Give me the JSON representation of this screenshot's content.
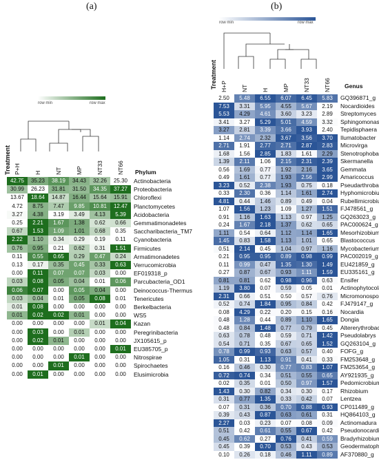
{
  "chart_data": [
    {
      "type": "heatmap",
      "panel": "(a)",
      "legend": {
        "min_label": "row min",
        "max_label": "row max",
        "low_color": "#ffffff",
        "high_color": "#1e6e1e"
      },
      "treatment_label": "Treatment",
      "row_header": "Phylum",
      "columns": [
        "P+H",
        "H",
        "NT",
        "MP",
        "NT33",
        "NT66"
      ],
      "rows": [
        {
          "name": "Actinobacteria",
          "values": [
            42.75,
            35.23,
            38.19,
            34.43,
            32.26,
            25.3
          ]
        },
        {
          "name": "Proteobacteria",
          "values": [
            30.99,
            26.23,
            31.81,
            31.5,
            34.35,
            37.27
          ]
        },
        {
          "name": "Chloroflexi",
          "values": [
            13.67,
            18.64,
            14.87,
            16.44,
            15.64,
            15.91
          ]
        },
        {
          "name": "Planctomycetes",
          "values": [
            4.72,
            8.75,
            7.47,
            9.85,
            10.81,
            12.47
          ]
        },
        {
          "name": "Acidobacteria",
          "values": [
            3.27,
            4.38,
            3.19,
            3.49,
            4.13,
            5.39
          ]
        },
        {
          "name": "Gemmatimonadetes",
          "values": [
            0.25,
            2.21,
            1.67,
            1.38,
            0.62,
            0.66
          ]
        },
        {
          "name": "Saccharibacteria_TM7",
          "values": [
            0.67,
            1.53,
            1.09,
            1.01,
            0.68,
            0.35
          ]
        },
        {
          "name": "Cyanobacteria",
          "values": [
            2.22,
            1.1,
            0.34,
            0.29,
            0.19,
            0.11
          ]
        },
        {
          "name": "Firmicutes",
          "values": [
            0.76,
            0.95,
            0.21,
            0.62,
            0.31,
            1.51
          ]
        },
        {
          "name": "Armatimonadetes",
          "values": [
            0.11,
            0.55,
            0.65,
            0.29,
            0.47,
            0.24
          ]
        },
        {
          "name": "Verrucomicrobia",
          "values": [
            0.13,
            0.17,
            0.35,
            0.45,
            0.33,
            0.63
          ]
        },
        {
          "name": "EF019318_p",
          "values": [
            0.0,
            0.11,
            0.07,
            0.07,
            0.03,
            0.0
          ]
        },
        {
          "name": "Parcubacteria_OD1",
          "values": [
            0.03,
            0.08,
            0.05,
            0.04,
            0.01,
            0.06
          ]
        },
        {
          "name": "Deinococcus-Thermus",
          "values": [
            0.06,
            0.07,
            0.0,
            0.05,
            0.04,
            0.0
          ]
        },
        {
          "name": "Tenericutes",
          "values": [
            0.03,
            0.04,
            0.01,
            0.05,
            0.08,
            0.01
          ]
        },
        {
          "name": "Berkelbacteria",
          "values": [
            0.01,
            0.08,
            0.0,
            0.0,
            0.0,
            0.0
          ]
        },
        {
          "name": "WS5",
          "values": [
            0.01,
            0.02,
            0.02,
            0.01,
            0.0,
            0.0
          ]
        },
        {
          "name": "Kazan",
          "values": [
            0.0,
            0.0,
            0.0,
            0.0,
            0.01,
            0.04
          ]
        },
        {
          "name": "Peregrinibacteria",
          "values": [
            0.0,
            0.03,
            0.0,
            0.01,
            0.0,
            0.0
          ]
        },
        {
          "name": "JX105615_p",
          "values": [
            0.0,
            0.02,
            0.01,
            0.0,
            0.0,
            0.0
          ]
        },
        {
          "name": "EU385705_p",
          "values": [
            0.0,
            0.0,
            0.0,
            0.0,
            0.0,
            0.01
          ]
        },
        {
          "name": "Nitrospirae",
          "values": [
            0.0,
            0.0,
            0.0,
            0.01,
            0.0,
            0.0
          ]
        },
        {
          "name": "Spirochaetes",
          "values": [
            0.0,
            0.0,
            0.01,
            0.0,
            0.0,
            0.0
          ]
        },
        {
          "name": "Elusimicrobia",
          "values": [
            0.0,
            0.01,
            0.0,
            0.0,
            0.0,
            0.0
          ]
        }
      ]
    },
    {
      "type": "heatmap",
      "panel": "(b)",
      "legend": {
        "min_label": "row min",
        "max_label": "row max",
        "low_color": "#ffffff",
        "high_color": "#2b5597"
      },
      "treatment_label": "Treatment",
      "row_header": "Genus",
      "columns": [
        "H+P",
        "NT",
        "H",
        "MP",
        "NT33",
        "NT66"
      ],
      "rows": [
        {
          "name": "GQ396871_g",
          "values": [
            2.5,
            5.48,
            6.55,
            6.07,
            6.45,
            5.83
          ]
        },
        {
          "name": "Nocardioides",
          "values": [
            7.53,
            3.31,
            5.95,
            4.55,
            5.67,
            2.19
          ]
        },
        {
          "name": "Streptomyces",
          "values": [
            5.53,
            4.29,
            4.61,
            3.6,
            3.23,
            2.89
          ]
        },
        {
          "name": "Sphingomonas",
          "values": [
            3.41,
            3.27,
            5.29,
            5.01,
            4.59,
            3.32
          ]
        },
        {
          "name": "Tepidisphaera",
          "values": [
            3.27,
            2.81,
            3.39,
            3.66,
            3.93,
            2.4
          ]
        },
        {
          "name": "Ilumatobacter",
          "values": [
            1.14,
            2.74,
            2.32,
            3.67,
            3.56,
            3.7
          ]
        },
        {
          "name": "Microvirga",
          "values": [
            2.71,
            1.91,
            2.77,
            2.71,
            2.87,
            2.83
          ]
        },
        {
          "name": "Stenotrophobacter",
          "values": [
            1.68,
            1.56,
            2.85,
            1.83,
            1.61,
            2.29
          ]
        },
        {
          "name": "Skermanella",
          "values": [
            1.39,
            2.11,
            1.06,
            2.15,
            2.31,
            2.39
          ]
        },
        {
          "name": "Gemmata",
          "values": [
            0.56,
            1.69,
            0.77,
            1.92,
            2.16,
            3.65
          ]
        },
        {
          "name": "Amaricoccus",
          "values": [
            0.49,
            1.61,
            0.77,
            1.93,
            2.56,
            2.99
          ]
        },
        {
          "name": "Pseudarthrobacter",
          "values": [
            3.23,
            0.52,
            2.38,
            1.93,
            0.75,
            0.18
          ]
        },
        {
          "name": "Hyphomicrobium",
          "values": [
            0.33,
            2.3,
            0.36,
            1.14,
            1.61,
            2.74
          ]
        },
        {
          "name": "Rubellimicrobium",
          "values": [
            4.81,
            0.44,
            1.46,
            0.89,
            0.49,
            0.04
          ]
        },
        {
          "name": "FJ478561_g",
          "values": [
            1.07,
            1.56,
            1.23,
            1.09,
            1.27,
            1.51
          ]
        },
        {
          "name": "GQ263023_g",
          "values": [
            0.91,
            1.16,
            1.63,
            1.13,
            0.97,
            1.25
          ]
        },
        {
          "name": "PAC000624_g",
          "values": [
            0.24,
            1.67,
            2.18,
            1.37,
            0.62,
            0.65
          ]
        },
        {
          "name": "Mesorhizobium",
          "values": [
            1.11,
            0.54,
            0.64,
            1.12,
            1.14,
            1.65
          ]
        },
        {
          "name": "Blastococcus",
          "values": [
            1.45,
            0.83,
            1.58,
            1.13,
            1.01,
            0.65
          ]
        },
        {
          "name": "Mycobacterium",
          "values": [
            0.51,
            2.14,
            0.45,
            1.04,
            0.97,
            1.16
          ]
        },
        {
          "name": "PAC002019_g",
          "values": [
            0.21,
            0.95,
            0.95,
            0.89,
            0.98,
            0.99
          ]
        },
        {
          "name": "EU421859_g",
          "values": [
            0.11,
            0.99,
            0.47,
            1.35,
            1.3,
            1.49
          ]
        },
        {
          "name": "EU335161_g",
          "values": [
            0.27,
            0.87,
            0.67,
            0.93,
            1.11,
            1.59
          ]
        },
        {
          "name": "Ensifer",
          "values": [
            0.81,
            0.81,
            0.62,
            0.98,
            0.96,
            0.63
          ]
        },
        {
          "name": "Actinophytocola",
          "values": [
            1.19,
            3.8,
            0.07,
            0.59,
            0.05,
            0.01
          ]
        },
        {
          "name": "Micromonospora",
          "values": [
            2.31,
            0.66,
            0.51,
            0.5,
            0.57,
            0.76
          ]
        },
        {
          "name": "FJ479147_g",
          "values": [
            0.52,
            0.74,
            1.84,
            0.95,
            0.84,
            0.42
          ]
        },
        {
          "name": "Nocardia",
          "values": [
            0.08,
            4.29,
            0.22,
            0.2,
            0.15,
            0.16
          ]
        },
        {
          "name": "Dongia",
          "values": [
            0.48,
            1.28,
            0.44,
            0.89,
            1.1,
            1.65
          ]
        },
        {
          "name": "Altererythrobacter",
          "values": [
            0.48,
            0.84,
            1.48,
            0.77,
            0.79,
            0.45
          ]
        },
        {
          "name": "Pseudolabrys",
          "values": [
            0.63,
            0.78,
            0.48,
            0.59,
            0.71,
            1.42
          ]
        },
        {
          "name": "GQ263104_g",
          "values": [
            0.54,
            0.71,
            0.35,
            0.67,
            0.65,
            1.52
          ]
        },
        {
          "name": "FOFG_g",
          "values": [
            0.78,
            0.99,
            0.93,
            0.63,
            0.57,
            0.4
          ]
        },
        {
          "name": "FM253648_g",
          "values": [
            1.05,
            0.31,
            1.13,
            0.91,
            0.41,
            0.33
          ]
        },
        {
          "name": "FM253654_g",
          "values": [
            0.16,
            0.46,
            0.3,
            0.77,
            0.83,
            1.07
          ]
        },
        {
          "name": "AY921935_g",
          "values": [
            0.72,
            0.74,
            0.34,
            0.51,
            0.55,
            0.65
          ]
        },
        {
          "name": "Pedomicrobium",
          "values": [
            0.02,
            0.35,
            0.01,
            0.5,
            0.97,
            1.57
          ]
        },
        {
          "name": "Rhizobium",
          "values": [
            1.43,
            0.3,
            0.82,
            0.34,
            0.3,
            0.17
          ]
        },
        {
          "name": "Lentzea",
          "values": [
            0.31,
            0.77,
            1.35,
            0.33,
            0.42,
            0.07
          ]
        },
        {
          "name": "CP011489_g",
          "values": [
            0.07,
            0.31,
            0.36,
            0.7,
            0.88,
            0.93
          ]
        },
        {
          "name": "HQ864103_g",
          "values": [
            0.39,
            0.43,
            0.87,
            0.63,
            0.61,
            0.31
          ]
        },
        {
          "name": "Actinomadura",
          "values": [
            2.27,
            0.03,
            0.23,
            0.07,
            0.08,
            0.09
          ]
        },
        {
          "name": "Pseudonocardia",
          "values": [
            0.51,
            0.42,
            0.61,
            0.55,
            0.67,
            0.42
          ]
        },
        {
          "name": "Bradyrhizobium",
          "values": [
            0.45,
            0.62,
            0.27,
            0.76,
            0.41,
            0.59
          ]
        },
        {
          "name": "Geodermatophilus",
          "values": [
            0.45,
            0.39,
            0.7,
            0.53,
            0.43,
            0.53
          ]
        },
        {
          "name": "AF370880_g",
          "values": [
            0.1,
            0.26,
            0.18,
            0.46,
            1.11,
            0.89
          ]
        }
      ]
    }
  ]
}
